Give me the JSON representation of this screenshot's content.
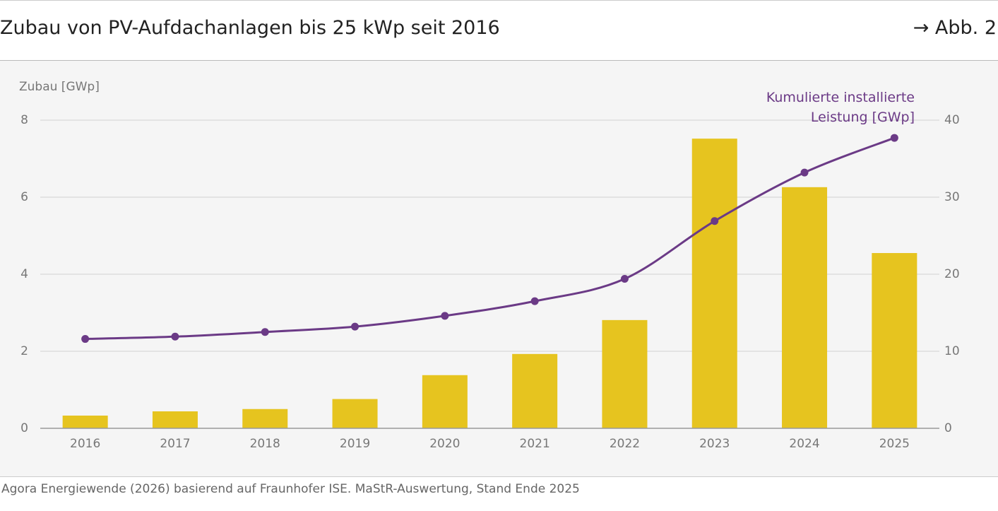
{
  "header": {
    "title": "Zubau von PV-Aufdachanlagen bis 25 kWp seit 2016",
    "reference": "→ Abb. 2"
  },
  "chart_data": {
    "type": "bar",
    "y_label": "Zubau [GWp]",
    "categories": [
      "2016",
      "2017",
      "2018",
      "2019",
      "2020",
      "2021",
      "2022",
      "2023",
      "2024",
      "2025"
    ],
    "series": [
      {
        "color": "#e6c41f",
        "values": [
          0.33,
          0.44,
          0.5,
          0.76,
          1.38,
          1.93,
          2.81,
          7.52,
          6.26,
          4.55
        ]
      },
      {
        "name": "Kumulierte installierte\nLeistung [GWp]",
        "type": "line",
        "axis": "y2",
        "color": "#6b3a86",
        "values": [
          11.6,
          11.9,
          12.5,
          13.2,
          14.6,
          16.5,
          19.4,
          26.9,
          33.2,
          37.7
        ]
      }
    ],
    "ylim": [
      0,
      8
    ],
    "yticks": [
      0,
      2,
      4,
      6,
      8
    ],
    "y2lim": [
      0,
      40
    ],
    "y2ticks": [
      0,
      10,
      20,
      30,
      40
    ],
    "grid": true
  },
  "footer": {
    "source": "Agora Energiewende (2026) basierend auf Fraunhofer ISE. MaStR-Auswertung, Stand Ende 2025"
  }
}
